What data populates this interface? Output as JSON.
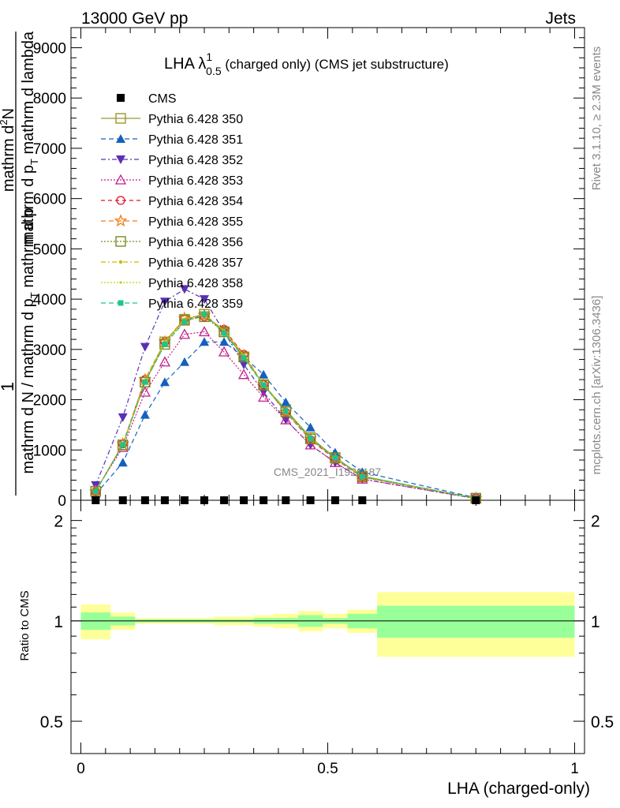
{
  "header": {
    "left": "13000 GeV pp",
    "right": "Jets"
  },
  "title": {
    "main": "LHA λ",
    "sup": "1",
    "sub": "0.5",
    "rest": " (charged only) (CMS jet substructure)"
  },
  "ylabel": {
    "numerator": "1",
    "denominator": "mathrm d N / mathrm d p",
    "denominator_sub": "T",
    "denominator_rest": " mathrm d p",
    "big_num": "mathrm d",
    "big_num_sup": "2",
    "big_num_rest": "N",
    "big_den": "mathrm d p",
    "big_den_sub": "T",
    "big_den_rest": " mathrm d lambda"
  },
  "side_labels": {
    "rivet": "Rivet 3.1.10, ≥ 2.3M events",
    "mcplots": "mcplots.cern.ch [arXiv:1306.3436]"
  },
  "watermark": "CMS_2021_I1920187",
  "ratio_ylabel": "Ratio to CMS",
  "xlabel": "LHA (charged-only)",
  "chart_data": {
    "type": "line",
    "x_range": [
      -0.02,
      1.02
    ],
    "main_ylim": [
      0,
      9400
    ],
    "main_yticks": [
      0,
      1000,
      2000,
      3000,
      4000,
      5000,
      6000,
      7000,
      8000,
      9000
    ],
    "main_ytick_labels": [
      "0",
      "1000",
      "2000",
      "3000",
      "4000",
      "5000",
      "6000",
      "7000",
      "8000",
      "9000"
    ],
    "ratio_ylog": true,
    "ratio_ylim": [
      0.4,
      2.3
    ],
    "ratio_ytick_labels": [
      {
        "value": 0.5,
        "label": "0.5"
      },
      {
        "value": 1,
        "label": "1"
      },
      {
        "value": 2,
        "label": "2"
      }
    ],
    "xtick_labels": [
      {
        "value": 0,
        "label": "0"
      },
      {
        "value": 0.5,
        "label": "0.5"
      },
      {
        "value": 1,
        "label": "1"
      }
    ],
    "x": [
      0.03,
      0.085,
      0.13,
      0.17,
      0.21,
      0.25,
      0.29,
      0.33,
      0.37,
      0.415,
      0.465,
      0.515,
      0.57,
      0.8
    ],
    "bin_edges": [
      0.0,
      0.06,
      0.11,
      0.15,
      0.19,
      0.23,
      0.27,
      0.31,
      0.35,
      0.39,
      0.44,
      0.49,
      0.54,
      0.6,
      1.0
    ],
    "ratio_band_inner": [
      0.06,
      0.03,
      0.01,
      0.01,
      0.01,
      0.01,
      0.01,
      0.01,
      0.02,
      0.02,
      0.04,
      0.02,
      0.05,
      0.11
    ],
    "ratio_band_outer": [
      0.12,
      0.06,
      0.02,
      0.02,
      0.02,
      0.02,
      0.03,
      0.03,
      0.04,
      0.05,
      0.07,
      0.05,
      0.08,
      0.22
    ],
    "series": [
      {
        "name": "CMS",
        "color": "#000000",
        "marker": "square-filled",
        "dash": "none",
        "values": [
          0,
          0,
          0,
          0,
          0,
          0,
          0,
          0,
          0,
          0,
          0,
          0,
          0,
          0
        ]
      },
      {
        "name": "Pythia 6.428 350",
        "color": "#999a2c",
        "marker": "square-open",
        "dash": "solid",
        "values": [
          180,
          1100,
          2350,
          3150,
          3600,
          3700,
          3350,
          2850,
          2300,
          1800,
          1250,
          850,
          480,
          40
        ]
      },
      {
        "name": "Pythia 6.428 351",
        "color": "#1560bd",
        "marker": "triangle-up-filled",
        "dash": "6,4",
        "values": [
          120,
          750,
          1700,
          2350,
          2750,
          3150,
          3150,
          2850,
          2500,
          1950,
          1450,
          950,
          560,
          50
        ]
      },
      {
        "name": "Pythia 6.428 352",
        "color": "#5b30b5",
        "marker": "triangle-down-filled",
        "dash": "6,3,2,3",
        "values": [
          300,
          1650,
          3050,
          3950,
          4200,
          4000,
          3350,
          2700,
          2150,
          1600,
          1100,
          750,
          420,
          35
        ]
      },
      {
        "name": "Pythia 6.428 353",
        "color": "#c21f8c",
        "marker": "triangle-up-open",
        "dash": "2,2",
        "values": [
          200,
          1050,
          2150,
          2750,
          3300,
          3350,
          2950,
          2500,
          2050,
          1600,
          1100,
          750,
          420,
          35
        ]
      },
      {
        "name": "Pythia 6.428 354",
        "color": "#e0112a",
        "marker": "circle-open",
        "dash": "5,4",
        "values": [
          170,
          1120,
          2400,
          3150,
          3600,
          3650,
          3400,
          2900,
          2300,
          1750,
          1200,
          820,
          460,
          40
        ]
      },
      {
        "name": "Pythia 6.428 355",
        "color": "#f07c1a",
        "marker": "star-open",
        "dash": "6,4",
        "values": [
          170,
          1120,
          2400,
          3150,
          3620,
          3680,
          3380,
          2880,
          2300,
          1750,
          1220,
          830,
          460,
          40
        ]
      },
      {
        "name": "Pythia 6.428 356",
        "color": "#7a8a20",
        "marker": "square-open",
        "dash": "2,2",
        "values": [
          175,
          1100,
          2350,
          3100,
          3580,
          3650,
          3350,
          2850,
          2290,
          1760,
          1220,
          840,
          465,
          40
        ]
      },
      {
        "name": "Pythia 6.428 357",
        "color": "#d4b600",
        "marker": "dot",
        "dash": "6,3,2,3",
        "values": [
          180,
          1110,
          2380,
          3150,
          3600,
          3700,
          3380,
          2880,
          2310,
          1770,
          1230,
          840,
          470,
          40
        ]
      },
      {
        "name": "Pythia 6.428 358",
        "color": "#b8d600",
        "marker": "dot-small",
        "dash": "2,2",
        "values": [
          178,
          1105,
          2370,
          3140,
          3590,
          3690,
          3370,
          2870,
          2300,
          1760,
          1225,
          838,
          468,
          40
        ]
      },
      {
        "name": "Pythia 6.428 359",
        "color": "#1ec48a",
        "marker": "square-filled-small",
        "dash": "6,4",
        "values": [
          175,
          1100,
          2350,
          3100,
          3550,
          3700,
          3330,
          2830,
          2290,
          1770,
          1230,
          845,
          470,
          40
        ]
      }
    ]
  }
}
